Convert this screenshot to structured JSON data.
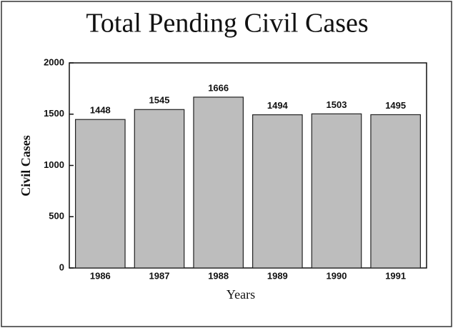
{
  "chart_data": {
    "type": "bar",
    "title": "Total Pending Civil Cases",
    "x_label": "Years",
    "y_label": "Civil Cases",
    "categories": [
      "1986",
      "1987",
      "1988",
      "1989",
      "1990",
      "1991"
    ],
    "values": [
      1448,
      1545,
      1666,
      1494,
      1503,
      1495
    ],
    "color": "#bdbdbd",
    "ylim": [
      0,
      2000
    ],
    "yticks": [
      0,
      500,
      1000,
      1500,
      2000
    ],
    "grid": false
  }
}
